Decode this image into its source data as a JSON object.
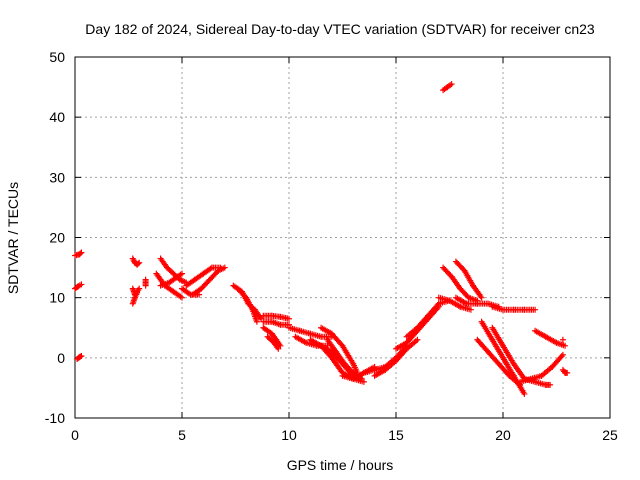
{
  "chart_data": {
    "type": "scatter",
    "title": "Day 182 of 2024, Sidereal Day-to-day VTEC variation (SDTVAR) for receiver cn23",
    "xlabel": "GPS time / hours",
    "ylabel": "SDTVAR / TECUs",
    "xlim": [
      0,
      25
    ],
    "ylim": [
      -10,
      50
    ],
    "xticks": [
      0,
      5,
      10,
      15,
      20,
      25
    ],
    "yticks": [
      -10,
      0,
      10,
      20,
      30,
      40,
      50
    ],
    "grid": true,
    "marker": "+",
    "color": "#ff0000",
    "series": [
      {
        "name": "SDTVAR",
        "tracks": [
          [
            [
              0.0,
              17.0
            ],
            [
              0.2,
              17.2
            ],
            [
              0.3,
              17.5
            ]
          ],
          [
            [
              0.0,
              11.5
            ],
            [
              0.15,
              11.9
            ],
            [
              0.3,
              12.2
            ]
          ],
          [
            [
              0.1,
              -0.2
            ],
            [
              0.2,
              0.1
            ],
            [
              0.3,
              0.3
            ]
          ],
          [
            [
              2.7,
              16.5
            ],
            [
              2.8,
              15.8
            ],
            [
              2.9,
              15.5
            ],
            [
              3.0,
              15.8
            ]
          ],
          [
            [
              2.7,
              11.5
            ],
            [
              2.8,
              10.5
            ],
            [
              2.9,
              11.0
            ],
            [
              3.0,
              11.5
            ]
          ],
          [
            [
              2.7,
              9.0
            ],
            [
              2.8,
              10.0
            ],
            [
              2.9,
              10.8
            ]
          ],
          [
            [
              3.3,
              13.0
            ],
            [
              3.3,
              12.0
            ]
          ],
          [
            [
              4.0,
              16.5
            ],
            [
              4.3,
              15.0
            ],
            [
              4.6,
              14.0
            ],
            [
              4.9,
              13.0
            ],
            [
              5.2,
              12.5
            ]
          ],
          [
            [
              3.8,
              14.0
            ],
            [
              4.2,
              12.0
            ],
            [
              4.6,
              11.0
            ],
            [
              5.0,
              10.0
            ]
          ],
          [
            [
              4.0,
              12.0
            ],
            [
              4.4,
              12.5
            ],
            [
              4.8,
              13.5
            ],
            [
              5.0,
              14.0
            ]
          ],
          [
            [
              5.2,
              12.0
            ],
            [
              5.6,
              13.0
            ],
            [
              6.0,
              14.0
            ],
            [
              6.4,
              15.0
            ],
            [
              6.8,
              15.0
            ]
          ],
          [
            [
              5.5,
              10.5
            ],
            [
              5.9,
              11.5
            ],
            [
              6.3,
              13.0
            ],
            [
              6.7,
              14.5
            ],
            [
              7.0,
              15.0
            ]
          ],
          [
            [
              5.0,
              11.5
            ],
            [
              5.4,
              10.5
            ],
            [
              5.8,
              10.5
            ]
          ],
          [
            [
              7.4,
              12.0
            ],
            [
              7.8,
              11.0
            ],
            [
              8.1,
              9.0
            ],
            [
              8.4,
              8.0
            ],
            [
              8.7,
              6.5
            ]
          ],
          [
            [
              7.6,
              11.5
            ],
            [
              8.0,
              10.0
            ],
            [
              8.3,
              8.0
            ],
            [
              8.5,
              6.0
            ]
          ],
          [
            [
              8.8,
              7.0
            ],
            [
              9.2,
              7.0
            ],
            [
              9.6,
              6.8
            ],
            [
              10.0,
              6.5
            ]
          ],
          [
            [
              8.8,
              6.0
            ],
            [
              9.2,
              6.0
            ],
            [
              9.6,
              5.5
            ],
            [
              10.0,
              5.5
            ]
          ],
          [
            [
              8.8,
              5.0
            ],
            [
              9.2,
              4.0
            ],
            [
              9.4,
              3.0
            ],
            [
              9.6,
              2.0
            ]
          ],
          [
            [
              9.0,
              3.5
            ],
            [
              9.3,
              2.5
            ],
            [
              9.5,
              1.5
            ]
          ],
          [
            [
              10.0,
              5.0
            ],
            [
              10.5,
              4.5
            ],
            [
              11.0,
              4.0
            ],
            [
              11.5,
              3.5
            ],
            [
              12.0,
              3.5
            ]
          ],
          [
            [
              10.3,
              3.5
            ],
            [
              10.8,
              2.5
            ],
            [
              11.3,
              2.0
            ],
            [
              11.8,
              2.0
            ]
          ],
          [
            [
              11.0,
              3.0
            ],
            [
              11.5,
              2.0
            ],
            [
              12.0,
              1.0
            ],
            [
              12.5,
              -1.0
            ],
            [
              13.0,
              -3.0
            ]
          ],
          [
            [
              11.8,
              3.0
            ],
            [
              12.2,
              1.0
            ],
            [
              12.6,
              -1.0
            ],
            [
              13.0,
              -2.5
            ],
            [
              13.4,
              -3.5
            ]
          ],
          [
            [
              11.5,
              2.0
            ],
            [
              12.0,
              0.0
            ],
            [
              12.5,
              -2.5
            ],
            [
              13.0,
              -3.5
            ],
            [
              13.5,
              -4.0
            ]
          ],
          [
            [
              11.5,
              5.0
            ],
            [
              12.0,
              4.0
            ],
            [
              12.5,
              2.0
            ],
            [
              13.0,
              -1.0
            ],
            [
              13.2,
              -2.5
            ]
          ],
          [
            [
              12.5,
              -3.0
            ],
            [
              13.0,
              -3.5
            ],
            [
              13.5,
              -2.5
            ],
            [
              14.0,
              -1.5
            ]
          ],
          [
            [
              13.5,
              -2.5
            ],
            [
              14.0,
              -2.0
            ],
            [
              14.5,
              -1.5
            ],
            [
              15.0,
              0.0
            ],
            [
              15.5,
              2.0
            ]
          ],
          [
            [
              14.0,
              -3.0
            ],
            [
              14.5,
              -2.0
            ],
            [
              15.0,
              -0.5
            ],
            [
              15.5,
              1.5
            ],
            [
              16.0,
              3.0
            ]
          ],
          [
            [
              15.0,
              1.5
            ],
            [
              15.5,
              2.5
            ],
            [
              16.0,
              4.5
            ],
            [
              16.5,
              6.5
            ],
            [
              17.0,
              8.5
            ]
          ],
          [
            [
              15.5,
              3.5
            ],
            [
              16.0,
              5.0
            ],
            [
              16.5,
              7.0
            ],
            [
              17.0,
              9.0
            ],
            [
              17.5,
              9.5
            ]
          ],
          [
            [
              17.2,
              15.0
            ],
            [
              17.6,
              13.5
            ],
            [
              18.0,
              11.5
            ],
            [
              18.4,
              10.0
            ],
            [
              18.8,
              9.5
            ]
          ],
          [
            [
              17.8,
              16.0
            ],
            [
              18.2,
              14.5
            ],
            [
              18.6,
              12.0
            ],
            [
              19.0,
              10.0
            ]
          ],
          [
            [
              17.0,
              10.0
            ],
            [
              17.5,
              9.5
            ],
            [
              18.0,
              8.5
            ],
            [
              18.5,
              8.0
            ]
          ],
          [
            [
              17.8,
              10.0
            ],
            [
              18.3,
              9.0
            ],
            [
              18.8,
              9.0
            ],
            [
              19.3,
              9.0
            ],
            [
              19.8,
              8.5
            ]
          ],
          [
            [
              19.5,
              8.5
            ],
            [
              20.0,
              8.0
            ],
            [
              20.5,
              8.0
            ],
            [
              21.0,
              8.0
            ],
            [
              21.5,
              8.0
            ]
          ],
          [
            [
              19.0,
              6.0
            ],
            [
              19.5,
              3.0
            ],
            [
              20.0,
              0.0
            ],
            [
              20.5,
              -3.0
            ],
            [
              21.0,
              -6.0
            ]
          ],
          [
            [
              19.5,
              5.0
            ],
            [
              20.0,
              2.0
            ],
            [
              20.5,
              -1.0
            ],
            [
              21.0,
              -3.5
            ],
            [
              21.5,
              -4.0
            ]
          ],
          [
            [
              18.8,
              3.0
            ],
            [
              19.3,
              1.0
            ],
            [
              19.8,
              -1.0
            ],
            [
              20.3,
              -3.0
            ],
            [
              20.8,
              -4.5
            ]
          ],
          [
            [
              20.8,
              -4.0
            ],
            [
              21.3,
              -3.5
            ],
            [
              21.8,
              -3.0
            ],
            [
              22.3,
              -1.5
            ],
            [
              22.8,
              0.5
            ]
          ],
          [
            [
              21.5,
              4.5
            ],
            [
              22.0,
              3.5
            ],
            [
              22.5,
              2.5
            ],
            [
              22.9,
              2.0
            ]
          ],
          [
            [
              21.5,
              -4.0
            ],
            [
              22.0,
              -4.5
            ],
            [
              22.2,
              -4.5
            ]
          ],
          [
            [
              22.8,
              -2.0
            ],
            [
              22.9,
              -2.5
            ],
            [
              23.0,
              -2.5
            ]
          ],
          [
            [
              22.8,
              3.0
            ]
          ],
          [
            [
              17.2,
              44.5
            ],
            [
              17.4,
              45.0
            ],
            [
              17.6,
              45.5
            ]
          ]
        ]
      }
    ]
  }
}
